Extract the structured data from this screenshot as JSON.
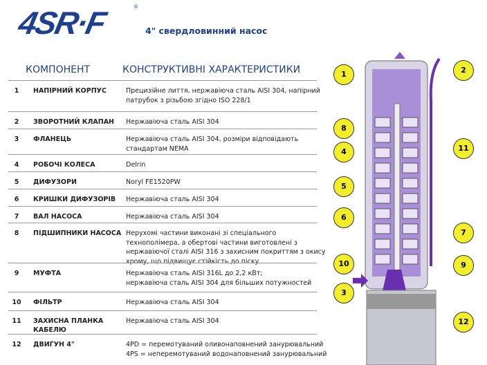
{
  "logo": "4SR·F",
  "subtitle": "4\" свердловинний насос",
  "headers": {
    "component": "КОМПОНЕНТ",
    "features": "КОНСТРУКТИВНІ ХАРАКТЕРИСТИКИ"
  },
  "rows": [
    {
      "num": "1",
      "name": "НАПІРНИЙ КОРПУС",
      "desc": [
        "Прецизійне лиття, нержавіюча сталь AISI 304, напірний",
        "патрубок з різьбою згідно ISO 228/1"
      ]
    },
    {
      "num": "2",
      "name": "ЗВОРОТНИЙ КЛАПАН",
      "desc": [
        "Нержавіюча сталь AISI 304"
      ]
    },
    {
      "num": "3",
      "name": "ФЛАНЕЦЬ",
      "desc": [
        "Нержавіюча сталь AISI 304, розміри відповідають",
        "стандартам NEMA"
      ]
    },
    {
      "num": "4",
      "name": "РОБОЧІ КОЛЕСА",
      "desc": [
        "Delrin"
      ]
    },
    {
      "num": "5",
      "name": "ДИФУЗОРИ",
      "desc": [
        "Noryl FE1520PW"
      ]
    },
    {
      "num": "6",
      "name": "КРИШКИ ДИФУЗОРІВ",
      "desc": [
        "Нержавіюча сталь AISI 304"
      ]
    },
    {
      "num": "7",
      "name": "ВАЛ НАСОСА",
      "desc": [
        "Нержавіюча сталь AISI 304"
      ]
    },
    {
      "num": "8",
      "name": "ПІДШИПНИКИ НАСОСА",
      "desc": [
        "Нерухомі частини виконані зі спеціального",
        "технополімера, а обертові частини виготовлені з",
        "нержавіючої сталі AISI 316 з захисним покриттям з окису",
        "хрому, що підвищує стійкість до піску"
      ]
    },
    {
      "num": "9",
      "name": "МУФТА",
      "desc": [
        "Нержавіюча сталь AISI 316L до 2,2 кВт;",
        "нержавіюча сталь AISI 304 для більших потужностей"
      ]
    },
    {
      "num": "10",
      "name": "ФІЛЬТР",
      "desc": [
        "Нержавіюча сталь AISI 304"
      ]
    },
    {
      "num": "11",
      "name": "ЗАХИСНА ПЛАНКА КАБЕЛЮ",
      "desc": [
        "Нержавіюча сталь AISI 304"
      ]
    },
    {
      "num": "12",
      "name": "ДВИГУН 4\"",
      "desc": [
        "4PD = перемотуваний оливонаповнений занурювальний",
        "4PS = неперемотуваний водонаповнений занурювальний"
      ]
    }
  ],
  "callouts": [
    "1",
    "2",
    "8",
    "11",
    "4",
    "5",
    "6",
    "7",
    "10",
    "9",
    "3",
    "12"
  ],
  "colors": {
    "brand": "#1f3f8f",
    "callout": "#f2ee2a",
    "pump": "#8a55c8"
  }
}
